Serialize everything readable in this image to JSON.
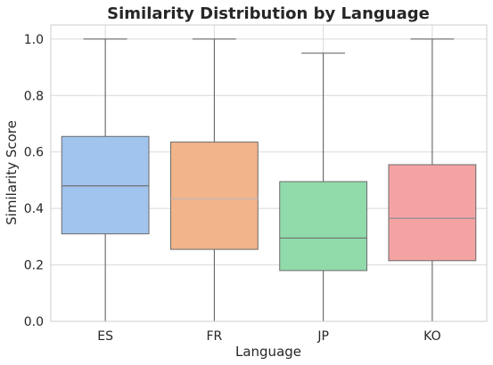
{
  "chart_data": {
    "type": "box",
    "title": "Similarity Distribution by Language",
    "xlabel": "Language",
    "ylabel": "Similarity Score",
    "ylim": [
      0,
      1.05
    ],
    "yticks": [
      0.0,
      0.2,
      0.4,
      0.6,
      0.8,
      1.0
    ],
    "ytick_labels": [
      "0.0",
      "0.2",
      "0.4",
      "0.6",
      "0.8",
      "1.0"
    ],
    "grid": true,
    "categories": [
      "ES",
      "FR",
      "JP",
      "KO"
    ],
    "boxes": [
      {
        "category": "ES",
        "whislo": 0.0,
        "q1": 0.31,
        "med": 0.48,
        "q3": 0.655,
        "whishi": 1.0,
        "color": "#a1c4ee",
        "median_color": "#6f6f6f"
      },
      {
        "category": "FR",
        "whislo": 0.0,
        "q1": 0.255,
        "med": 0.435,
        "q3": 0.635,
        "whishi": 1.0,
        "color": "#f2b48a",
        "median_color": "#b9b9b9"
      },
      {
        "category": "JP",
        "whislo": 0.0,
        "q1": 0.18,
        "med": 0.295,
        "q3": 0.495,
        "whishi": 0.95,
        "color": "#91dbab",
        "median_color": "#6f6f6f"
      },
      {
        "category": "KO",
        "whislo": 0.0,
        "q1": 0.215,
        "med": 0.365,
        "q3": 0.555,
        "whishi": 1.0,
        "color": "#f4a3a3",
        "median_color": "#8f8f8f"
      }
    ]
  }
}
